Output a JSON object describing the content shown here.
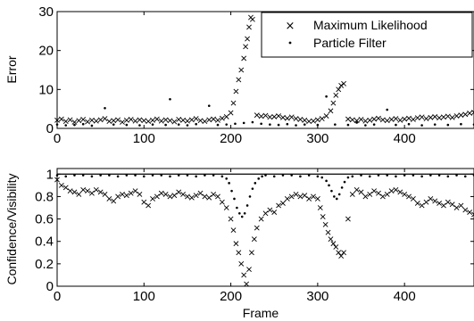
{
  "chart_data": [
    {
      "type": "scatter",
      "title": "",
      "xlabel": "",
      "ylabel": "Error",
      "xlim": [
        0,
        480
      ],
      "ylim": [
        0,
        30
      ],
      "x_ticks": [
        0,
        100,
        200,
        300,
        400
      ],
      "y_ticks": [
        0,
        10,
        20,
        30
      ],
      "x_tick_labels": [
        "0",
        "100",
        "200",
        "300",
        "400"
      ],
      "y_tick_labels": [
        "0",
        "10",
        "20",
        "30"
      ],
      "grid": false,
      "legend": {
        "position": "top-right",
        "entries": [
          "Maximum Likelihood",
          "Particle Filter"
        ]
      },
      "series": [
        {
          "name": "Maximum Likelihood",
          "marker": "x",
          "x": [
            0,
            5,
            10,
            15,
            20,
            25,
            30,
            35,
            40,
            45,
            50,
            55,
            60,
            65,
            70,
            75,
            80,
            85,
            90,
            95,
            100,
            105,
            110,
            115,
            120,
            125,
            130,
            135,
            140,
            145,
            150,
            155,
            160,
            165,
            170,
            175,
            180,
            185,
            190,
            195,
            200,
            203,
            206,
            209,
            212,
            215,
            217,
            219,
            221,
            223,
            225,
            230,
            235,
            240,
            245,
            250,
            255,
            260,
            265,
            270,
            275,
            280,
            285,
            290,
            295,
            300,
            305,
            310,
            315,
            318,
            321,
            324,
            327,
            330,
            335,
            340,
            345,
            350,
            355,
            360,
            365,
            370,
            375,
            380,
            385,
            390,
            395,
            400,
            405,
            410,
            415,
            420,
            425,
            430,
            435,
            440,
            445,
            450,
            455,
            460,
            465,
            470,
            475,
            480
          ],
          "y": [
            2.1,
            2.4,
            1.8,
            2.2,
            1.6,
            2.0,
            2.3,
            1.7,
            2.1,
            1.9,
            2.2,
            2.5,
            1.8,
            2.0,
            2.2,
            1.6,
            2.1,
            2.3,
            1.9,
            2.2,
            2.0,
            1.8,
            2.1,
            2.4,
            1.9,
            2.2,
            2.0,
            1.7,
            2.3,
            2.1,
            1.9,
            2.2,
            2.5,
            2.0,
            1.8,
            2.2,
            2.4,
            2.1,
            2.6,
            3.0,
            4.0,
            6.5,
            9.5,
            12.5,
            15.0,
            18.0,
            21.0,
            23.0,
            26.0,
            28.5,
            28.0,
            3.4,
            3.1,
            3.3,
            2.9,
            3.0,
            3.2,
            2.8,
            2.6,
            2.9,
            2.5,
            2.3,
            2.1,
            1.8,
            1.9,
            2.2,
            2.5,
            3.2,
            4.5,
            6.5,
            8.5,
            10.0,
            11.0,
            11.5,
            2.4,
            2.2,
            2.0,
            2.3,
            1.9,
            2.1,
            2.4,
            2.6,
            2.2,
            2.0,
            2.3,
            2.5,
            2.1,
            2.4,
            2.6,
            2.3,
            2.7,
            2.9,
            2.5,
            2.8,
            3.0,
            2.7,
            2.9,
            3.1,
            2.8,
            3.2,
            3.4,
            3.6,
            3.9,
            4.1
          ]
        },
        {
          "name": "Particle Filter",
          "marker": "dot",
          "x": [
            0,
            10,
            20,
            30,
            40,
            55,
            65,
            80,
            95,
            110,
            125,
            130,
            140,
            150,
            160,
            175,
            185,
            195,
            205,
            215,
            225,
            235,
            245,
            255,
            265,
            275,
            285,
            300,
            310,
            320,
            335,
            345,
            355,
            365,
            380,
            390,
            405,
            420,
            435,
            450,
            465,
            480
          ],
          "y": [
            1.0,
            0.8,
            0.9,
            1.1,
            0.7,
            5.2,
            1.0,
            0.9,
            0.8,
            1.0,
            0.9,
            7.5,
            1.0,
            0.8,
            1.1,
            5.8,
            0.9,
            1.0,
            1.2,
            1.4,
            1.6,
            1.2,
            1.0,
            0.9,
            1.1,
            0.8,
            1.0,
            0.9,
            8.2,
            1.0,
            0.9,
            1.5,
            0.8,
            1.0,
            4.8,
            0.9,
            1.1,
            0.8,
            1.0,
            0.9,
            1.1,
            1.0
          ]
        }
      ]
    },
    {
      "type": "scatter",
      "title": "",
      "xlabel": "Frame",
      "ylabel": "Confidence/Visibility",
      "xlim": [
        0,
        480
      ],
      "ylim": [
        0,
        1.05
      ],
      "x_ticks": [
        0,
        100,
        200,
        300,
        400
      ],
      "y_ticks": [
        0,
        0.2,
        0.4,
        0.6,
        0.8,
        1
      ],
      "x_tick_labels": [
        "0",
        "100",
        "200",
        "300",
        "400"
      ],
      "y_tick_labels": [
        "0",
        "0.2",
        "0.4",
        "0.6",
        "0.8",
        "1"
      ],
      "grid": false,
      "reference_line_y": 1.0,
      "series": [
        {
          "marker": "x",
          "x": [
            0,
            5,
            10,
            15,
            20,
            25,
            30,
            35,
            40,
            45,
            50,
            55,
            60,
            65,
            70,
            75,
            80,
            85,
            90,
            95,
            100,
            105,
            110,
            115,
            120,
            125,
            130,
            135,
            140,
            145,
            150,
            155,
            160,
            165,
            170,
            175,
            180,
            185,
            190,
            195,
            200,
            203,
            206,
            209,
            212,
            215,
            218,
            221,
            224,
            227,
            230,
            235,
            240,
            245,
            250,
            255,
            260,
            265,
            270,
            275,
            280,
            285,
            290,
            295,
            300,
            303,
            306,
            309,
            312,
            315,
            318,
            321,
            324,
            327,
            330,
            335,
            340,
            345,
            350,
            355,
            360,
            365,
            370,
            375,
            380,
            385,
            390,
            395,
            400,
            405,
            410,
            415,
            420,
            425,
            430,
            435,
            440,
            445,
            450,
            455,
            460,
            465,
            470,
            475,
            480
          ],
          "y": [
            0.95,
            0.9,
            0.88,
            0.85,
            0.84,
            0.82,
            0.86,
            0.85,
            0.83,
            0.86,
            0.84,
            0.82,
            0.78,
            0.76,
            0.8,
            0.82,
            0.81,
            0.83,
            0.85,
            0.82,
            0.75,
            0.72,
            0.78,
            0.8,
            0.83,
            0.82,
            0.8,
            0.81,
            0.84,
            0.82,
            0.8,
            0.79,
            0.81,
            0.83,
            0.8,
            0.79,
            0.82,
            0.8,
            0.75,
            0.7,
            0.6,
            0.5,
            0.38,
            0.3,
            0.2,
            0.1,
            0.02,
            0.15,
            0.3,
            0.42,
            0.52,
            0.6,
            0.65,
            0.68,
            0.66,
            0.72,
            0.74,
            0.78,
            0.8,
            0.82,
            0.8,
            0.81,
            0.78,
            0.8,
            0.78,
            0.7,
            0.62,
            0.55,
            0.48,
            0.42,
            0.38,
            0.35,
            0.3,
            0.27,
            0.3,
            0.6,
            0.82,
            0.86,
            0.84,
            0.8,
            0.82,
            0.85,
            0.83,
            0.8,
            0.82,
            0.85,
            0.86,
            0.84,
            0.82,
            0.8,
            0.78,
            0.74,
            0.72,
            0.75,
            0.78,
            0.76,
            0.74,
            0.72,
            0.75,
            0.73,
            0.7,
            0.72,
            0.68,
            0.66,
            0.64
          ]
        },
        {
          "marker": "dot",
          "x": [
            0,
            10,
            20,
            30,
            40,
            50,
            60,
            70,
            80,
            90,
            100,
            110,
            120,
            130,
            140,
            150,
            160,
            170,
            180,
            190,
            195,
            198,
            201,
            204,
            207,
            210,
            213,
            216,
            219,
            222,
            225,
            228,
            232,
            236,
            240,
            250,
            260,
            270,
            280,
            290,
            300,
            305,
            310,
            313,
            316,
            319,
            322,
            325,
            328,
            331,
            335,
            340,
            350,
            360,
            370,
            380,
            390,
            400,
            410,
            420,
            430,
            440,
            450,
            460,
            470,
            480
          ],
          "y": [
            0.99,
            0.98,
            0.99,
            0.99,
            0.98,
            0.99,
            0.99,
            0.98,
            0.99,
            0.99,
            0.98,
            0.99,
            0.99,
            0.98,
            0.99,
            0.99,
            0.98,
            0.99,
            0.99,
            0.98,
            0.96,
            0.92,
            0.85,
            0.78,
            0.7,
            0.65,
            0.62,
            0.65,
            0.72,
            0.8,
            0.87,
            0.92,
            0.96,
            0.98,
            0.99,
            0.98,
            0.99,
            0.99,
            0.98,
            0.99,
            0.98,
            0.97,
            0.94,
            0.9,
            0.85,
            0.8,
            0.78,
            0.82,
            0.88,
            0.93,
            0.97,
            0.98,
            0.99,
            0.98,
            0.99,
            0.99,
            0.98,
            0.99,
            0.99,
            0.98,
            0.99,
            0.99,
            0.98,
            0.99,
            0.98,
            0.99
          ]
        }
      ]
    }
  ]
}
